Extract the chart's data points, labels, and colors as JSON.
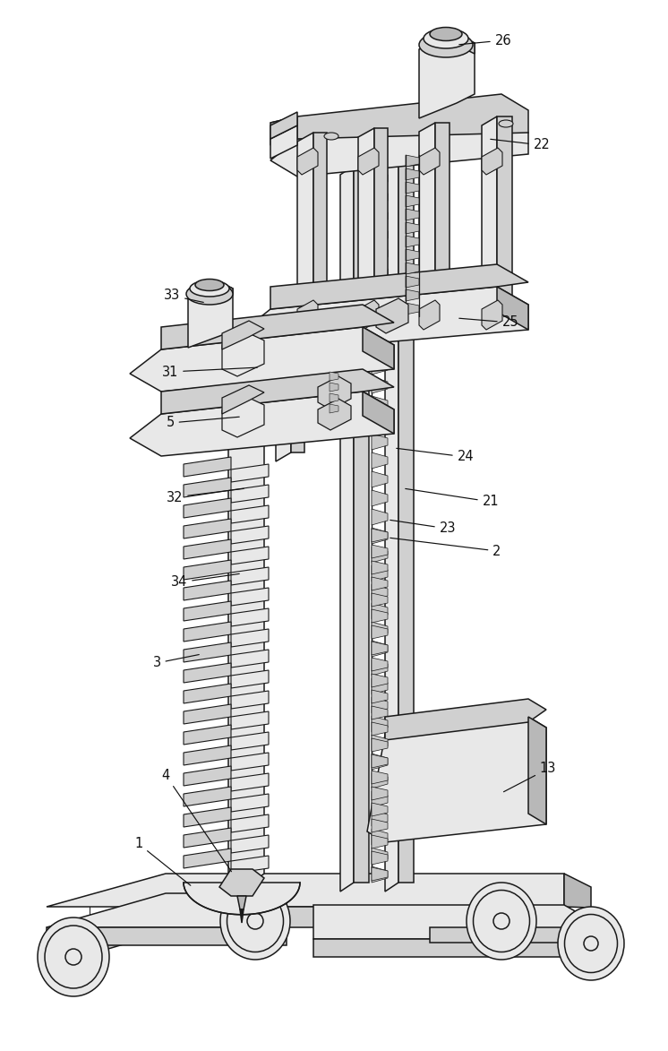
{
  "bg_color": "#ffffff",
  "lc": "#1a1a1a",
  "fc_light": "#e8e8e8",
  "fc_mid": "#d0d0d0",
  "fc_dark": "#b8b8b8",
  "figsize": [
    7.46,
    11.73
  ],
  "dpi": 100
}
